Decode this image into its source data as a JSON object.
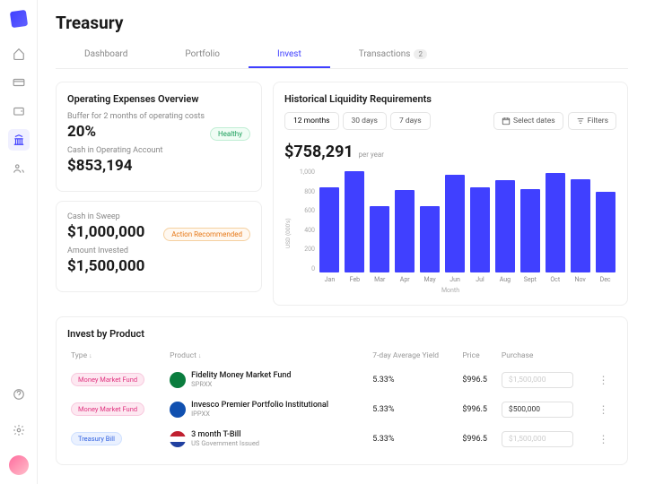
{
  "page_title": "Treasury",
  "tabs": [
    "Dashboard",
    "Portfolio",
    "Invest",
    "Transactions"
  ],
  "active_tab": "Invest",
  "transactions_badge": "2",
  "operating": {
    "title": "Operating Expenses Overview",
    "buffer_label": "Buffer for 2 months of operating costs",
    "buffer_value": "20%",
    "healthy_label": "Healthy",
    "cash_label": "Cash in Operating Account",
    "cash_value": "$853,194"
  },
  "sweep": {
    "cash_label": "Cash in Sweep",
    "cash_value": "$1,000,000",
    "action_label": "Action Recommended",
    "invested_label": "Amount Invested",
    "invested_value": "$1,500,000"
  },
  "liquidity": {
    "title": "Historical Liquidity Requirements",
    "periods": [
      "12 months",
      "30 days",
      "7 days"
    ],
    "selected_period": "12 months",
    "select_dates": "Select dates",
    "filters": "Filters",
    "total": "$758,291",
    "total_suffix": "per year",
    "ylabel": "USD (000's)",
    "xlabel": "Month",
    "ymax": 1000,
    "yticks": [
      "1,000",
      "800",
      "600",
      "400",
      "200",
      "0"
    ],
    "bar_color": "#4040ff",
    "bars": [
      {
        "label": "Jan",
        "value": 820
      },
      {
        "label": "Feb",
        "value": 970
      },
      {
        "label": "Mar",
        "value": 640
      },
      {
        "label": "Apr",
        "value": 790
      },
      {
        "label": "May",
        "value": 640
      },
      {
        "label": "Jun",
        "value": 940
      },
      {
        "label": "Jul",
        "value": 820
      },
      {
        "label": "Aug",
        "value": 890
      },
      {
        "label": "Sept",
        "value": 800
      },
      {
        "label": "Oct",
        "value": 960
      },
      {
        "label": "Nov",
        "value": 900
      },
      {
        "label": "Dec",
        "value": 780
      }
    ]
  },
  "invest": {
    "title": "Invest by Product",
    "columns": [
      "Type",
      "Product",
      "7-day Average Yield",
      "Price",
      "Purchase"
    ],
    "rows": [
      {
        "type": "Money Market Fund",
        "type_class": "mmf",
        "name": "Fidelity Money Market Fund",
        "sub": "SPRXX",
        "icon_bg": "#0a7d3e",
        "yield": "5.33%",
        "price": "$996.5",
        "purchase": "$1,500,000",
        "filled": false
      },
      {
        "type": "Money Market Fund",
        "type_class": "mmf",
        "name": "Invesco Premier Portfolio Institutional",
        "sub": "IPPXX",
        "icon_bg": "#1050b0",
        "yield": "5.33%",
        "price": "$996.5",
        "purchase": "$500,000",
        "filled": true
      },
      {
        "type": "Treasury Bill",
        "type_class": "tb",
        "name": "3 month T-Bill",
        "sub": "US Government Issued",
        "icon_bg": "linear-gradient(#c02030 33%,#fff 33% 66%,#2040a0 66%)",
        "yield": "5.33%",
        "price": "$996.5",
        "purchase": "$1,500,000",
        "filled": false
      }
    ]
  }
}
